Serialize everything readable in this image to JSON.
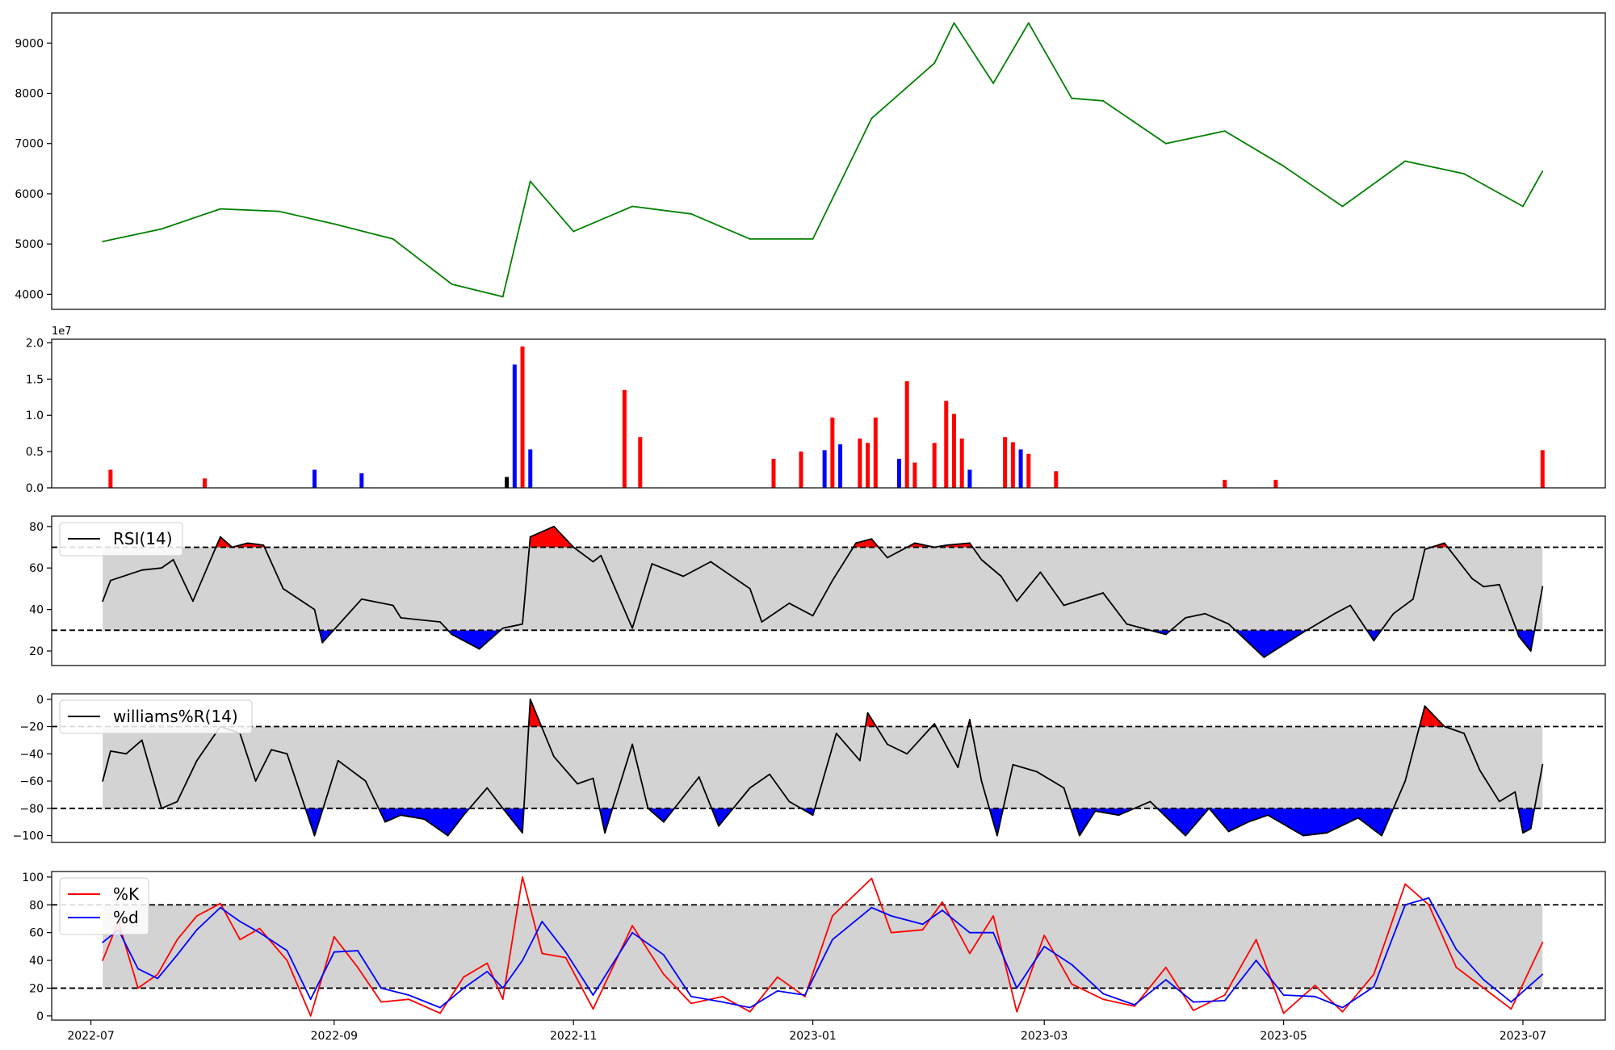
{
  "chart_data": [
    {
      "type": "line",
      "panel": "price",
      "color": "#008000",
      "ylim": [
        3700,
        9600
      ],
      "yticks": [
        "4000",
        "5000",
        "6000",
        "7000",
        "8000",
        "9000"
      ],
      "xlim": [
        "2022-06-21",
        "2023-07-22"
      ],
      "series": [
        {
          "x": [
            "2022-07-04",
            "2022-07-19",
            "2022-08-03",
            "2022-08-18",
            "2022-09-01",
            "2022-09-16",
            "2022-10-01",
            "2022-10-14",
            "2022-10-21",
            "2022-11-01",
            "2022-11-16",
            "2022-12-01",
            "2022-12-16",
            "2023-01-01",
            "2023-01-16",
            "2023-02-01",
            "2023-02-06",
            "2023-02-16",
            "2023-02-25",
            "2023-03-08",
            "2023-03-16",
            "2023-04-01",
            "2023-04-16",
            "2023-05-01",
            "2023-05-16",
            "2023-06-01",
            "2023-06-16",
            "2023-07-01",
            "2023-07-06"
          ],
          "values": [
            5050,
            5300,
            5700,
            5650,
            5400,
            5100,
            4200,
            3950,
            6250,
            5250,
            5750,
            5600,
            5100,
            5100,
            7500,
            8600,
            9400,
            8200,
            9400,
            7900,
            7850,
            7000,
            7250,
            6550,
            5750,
            6650,
            6400,
            5750,
            6450
          ]
        }
      ]
    },
    {
      "type": "bar",
      "panel": "volume",
      "scale_label": "1e7",
      "ylim": [
        0,
        2.05
      ],
      "yticks": [
        "0.0",
        "0.5",
        "1.0",
        "1.5",
        "2.0"
      ],
      "colors": {
        "up": "#ff0000",
        "down": "#0000ff",
        "flat": "#000000"
      },
      "series": [
        {
          "x": [
            "2022-07-06",
            "2022-07-30",
            "2022-08-27",
            "2022-09-08",
            "2022-10-15",
            "2022-10-17",
            "2022-10-19",
            "2022-10-21",
            "2022-11-14",
            "2022-11-18",
            "2022-12-22",
            "2022-12-29",
            "2023-01-04",
            "2023-01-06",
            "2023-01-08",
            "2023-01-13",
            "2023-01-15",
            "2023-01-17",
            "2023-01-23",
            "2023-01-25",
            "2023-01-27",
            "2023-02-01",
            "2023-02-04",
            "2023-02-06",
            "2023-02-08",
            "2023-02-10",
            "2023-02-19",
            "2023-02-21",
            "2023-02-23",
            "2023-02-25",
            "2023-03-04",
            "2023-04-16",
            "2023-04-29",
            "2023-07-06"
          ],
          "values": [
            0.25,
            0.13,
            0.25,
            0.2,
            0.15,
            1.7,
            1.95,
            0.53,
            1.35,
            0.7,
            0.4,
            0.5,
            0.52,
            0.97,
            0.6,
            0.68,
            0.62,
            0.97,
            0.4,
            1.47,
            0.35,
            0.62,
            1.2,
            1.02,
            0.68,
            0.25,
            0.7,
            0.63,
            0.53,
            0.47,
            0.23,
            0.11,
            0.11,
            0.52
          ],
          "direction": [
            "up",
            "up",
            "down",
            "down",
            "flat",
            "down",
            "up",
            "down",
            "up",
            "up",
            "up",
            "up",
            "down",
            "up",
            "down",
            "up",
            "up",
            "up",
            "down",
            "up",
            "up",
            "up",
            "up",
            "up",
            "up",
            "down",
            "up",
            "up",
            "down",
            "up",
            "up",
            "up",
            "up",
            "up"
          ]
        }
      ]
    },
    {
      "type": "line",
      "panel": "rsi",
      "ylim": [
        13,
        85
      ],
      "yticks": [
        "20",
        "40",
        "60",
        "80"
      ],
      "thresholds": [
        30,
        70
      ],
      "band_color": "#d3d3d3",
      "overbought_color": "#ff0000",
      "oversold_color": "#0000ff",
      "series": [
        {
          "name": "RSI(14)",
          "x": [
            "2022-07-04",
            "2022-07-06",
            "2022-07-14",
            "2022-07-19",
            "2022-07-22",
            "2022-07-27",
            "2022-08-03",
            "2022-08-06",
            "2022-08-10",
            "2022-08-14",
            "2022-08-19",
            "2022-08-27",
            "2022-08-29",
            "2022-09-08",
            "2022-09-16",
            "2022-09-18",
            "2022-09-28",
            "2022-10-01",
            "2022-10-08",
            "2022-10-14",
            "2022-10-19",
            "2022-10-21",
            "2022-10-27",
            "2022-11-01",
            "2022-11-06",
            "2022-11-08",
            "2022-11-16",
            "2022-11-21",
            "2022-11-29",
            "2022-12-06",
            "2022-12-16",
            "2022-12-19",
            "2022-12-26",
            "2023-01-01",
            "2023-01-06",
            "2023-01-12",
            "2023-01-16",
            "2023-01-20",
            "2023-01-27",
            "2023-02-01",
            "2023-02-04",
            "2023-02-10",
            "2023-02-13",
            "2023-02-18",
            "2023-02-22",
            "2023-02-28",
            "2023-03-06",
            "2023-03-16",
            "2023-03-22",
            "2023-04-01",
            "2023-04-06",
            "2023-04-11",
            "2023-04-17",
            "2023-04-26",
            "2023-05-06",
            "2023-05-14",
            "2023-05-18",
            "2023-05-24",
            "2023-05-29",
            "2023-06-03",
            "2023-06-06",
            "2023-06-11",
            "2023-06-18",
            "2023-06-21",
            "2023-06-25",
            "2023-06-30",
            "2023-07-03",
            "2023-07-06"
          ],
          "values": [
            44,
            54,
            59,
            60,
            64,
            44,
            75,
            70,
            72,
            71,
            50,
            40,
            24,
            45,
            42,
            36,
            34,
            28,
            21,
            31,
            33,
            75,
            80,
            70,
            63,
            66,
            31,
            62,
            56,
            63,
            50,
            34,
            43,
            37,
            54,
            72,
            74,
            65,
            72,
            70,
            71,
            72,
            64,
            56,
            44,
            58,
            42,
            48,
            33,
            28,
            36,
            38,
            33,
            17,
            29,
            38,
            42,
            25,
            38,
            45,
            69,
            72,
            55,
            51,
            52,
            27,
            20,
            51
          ]
        }
      ]
    },
    {
      "type": "line",
      "panel": "williams",
      "ylim": [
        -105,
        4
      ],
      "yticks": [
        "0",
        "−20",
        "−40",
        "−60",
        "−80",
        "−100"
      ],
      "thresholds": [
        -20,
        -80
      ],
      "band_color": "#d3d3d3",
      "overbought_color": "#ff0000",
      "oversold_color": "#0000ff",
      "series": [
        {
          "name": "williams%R(14)",
          "x": [
            "2022-07-04",
            "2022-07-06",
            "2022-07-10",
            "2022-07-14",
            "2022-07-19",
            "2022-07-23",
            "2022-07-28",
            "2022-08-03",
            "2022-08-08",
            "2022-08-12",
            "2022-08-16",
            "2022-08-20",
            "2022-08-27",
            "2022-09-02",
            "2022-09-09",
            "2022-09-14",
            "2022-09-18",
            "2022-09-24",
            "2022-09-30",
            "2022-10-04",
            "2022-10-10",
            "2022-10-14",
            "2022-10-19",
            "2022-10-21",
            "2022-10-27",
            "2022-11-02",
            "2022-11-06",
            "2022-11-09",
            "2022-11-16",
            "2022-11-20",
            "2022-11-24",
            "2022-12-03",
            "2022-12-08",
            "2022-12-16",
            "2022-12-21",
            "2022-12-26",
            "2023-01-01",
            "2023-01-07",
            "2023-01-13",
            "2023-01-15",
            "2023-01-20",
            "2023-01-25",
            "2023-02-01",
            "2023-02-07",
            "2023-02-10",
            "2023-02-13",
            "2023-02-17",
            "2023-02-21",
            "2023-02-27",
            "2023-03-06",
            "2023-03-10",
            "2023-03-14",
            "2023-03-20",
            "2023-03-28",
            "2023-04-06",
            "2023-04-12",
            "2023-04-17",
            "2023-04-22",
            "2023-04-27",
            "2023-05-06",
            "2023-05-12",
            "2023-05-20",
            "2023-05-26",
            "2023-06-01",
            "2023-06-06",
            "2023-06-11",
            "2023-06-16",
            "2023-06-20",
            "2023-06-25",
            "2023-06-29",
            "2023-07-01",
            "2023-07-03",
            "2023-07-06"
          ],
          "values": [
            -60,
            -38,
            -40,
            -30,
            -80,
            -75,
            -45,
            -20,
            -25,
            -60,
            -37,
            -40,
            -100,
            -45,
            -60,
            -90,
            -85,
            -88,
            -100,
            -85,
            -65,
            -80,
            -98,
            0,
            -42,
            -62,
            -58,
            -98,
            -33,
            -80,
            -90,
            -57,
            -93,
            -65,
            -55,
            -75,
            -85,
            -25,
            -45,
            -10,
            -33,
            -40,
            -18,
            -50,
            -15,
            -60,
            -100,
            -48,
            -53,
            -65,
            -100,
            -82,
            -85,
            -75,
            -100,
            -80,
            -97,
            -90,
            -85,
            -100,
            -98,
            -87,
            -100,
            -60,
            -5,
            -20,
            -25,
            -52,
            -75,
            -68,
            -98,
            -95,
            -48
          ]
        }
      ]
    },
    {
      "type": "line",
      "panel": "stochastic",
      "ylim": [
        -3,
        104
      ],
      "yticks": [
        "0",
        "20",
        "40",
        "60",
        "80",
        "100"
      ],
      "thresholds": [
        20,
        80
      ],
      "band_color": "#d3d3d3",
      "series": [
        {
          "name": "%K",
          "color": "#ff0000",
          "x": [
            "2022-07-04",
            "2022-07-08",
            "2022-07-13",
            "2022-07-18",
            "2022-07-23",
            "2022-07-28",
            "2022-08-03",
            "2022-08-08",
            "2022-08-13",
            "2022-08-20",
            "2022-08-26",
            "2022-09-01",
            "2022-09-07",
            "2022-09-13",
            "2022-09-20",
            "2022-09-28",
            "2022-10-04",
            "2022-10-10",
            "2022-10-14",
            "2022-10-19",
            "2022-10-24",
            "2022-10-30",
            "2022-11-06",
            "2022-11-16",
            "2022-11-24",
            "2022-12-01",
            "2022-12-09",
            "2022-12-16",
            "2022-12-23",
            "2022-12-30",
            "2023-01-06",
            "2023-01-16",
            "2023-01-21",
            "2023-01-29",
            "2023-02-03",
            "2023-02-10",
            "2023-02-16",
            "2023-02-22",
            "2023-03-01",
            "2023-03-08",
            "2023-03-16",
            "2023-03-24",
            "2023-04-01",
            "2023-04-08",
            "2023-04-16",
            "2023-04-24",
            "2023-05-01",
            "2023-05-09",
            "2023-05-16",
            "2023-05-24",
            "2023-06-01",
            "2023-06-07",
            "2023-06-14",
            "2023-06-21",
            "2023-06-28",
            "2023-07-06"
          ],
          "values": [
            40,
            68,
            20,
            30,
            55,
            72,
            81,
            55,
            63,
            40,
            0,
            57,
            35,
            10,
            12,
            2,
            28,
            38,
            12,
            100,
            45,
            42,
            5,
            65,
            30,
            9,
            14,
            3,
            28,
            14,
            72,
            99,
            60,
            62,
            82,
            45,
            72,
            3,
            58,
            23,
            12,
            7,
            35,
            4,
            15,
            55,
            2,
            22,
            3,
            30,
            95,
            80,
            35,
            20,
            5,
            53
          ]
        },
        {
          "name": "%d",
          "color": "#0000ff",
          "x": [
            "2022-07-04",
            "2022-07-08",
            "2022-07-13",
            "2022-07-18",
            "2022-07-23",
            "2022-07-28",
            "2022-08-03",
            "2022-08-08",
            "2022-08-13",
            "2022-08-20",
            "2022-08-26",
            "2022-09-01",
            "2022-09-07",
            "2022-09-13",
            "2022-09-20",
            "2022-09-28",
            "2022-10-04",
            "2022-10-10",
            "2022-10-14",
            "2022-10-19",
            "2022-10-24",
            "2022-10-30",
            "2022-11-06",
            "2022-11-16",
            "2022-11-24",
            "2022-12-01",
            "2022-12-09",
            "2022-12-16",
            "2022-12-23",
            "2022-12-30",
            "2023-01-06",
            "2023-01-16",
            "2023-01-21",
            "2023-01-29",
            "2023-02-03",
            "2023-02-10",
            "2023-02-16",
            "2023-02-22",
            "2023-03-01",
            "2023-03-08",
            "2023-03-16",
            "2023-03-24",
            "2023-04-01",
            "2023-04-08",
            "2023-04-16",
            "2023-04-24",
            "2023-05-01",
            "2023-05-09",
            "2023-05-16",
            "2023-05-24",
            "2023-06-01",
            "2023-06-07",
            "2023-06-14",
            "2023-06-21",
            "2023-06-28",
            "2023-07-06"
          ],
          "values": [
            53,
            62,
            34,
            27,
            44,
            62,
            78,
            68,
            60,
            47,
            12,
            46,
            47,
            20,
            15,
            6,
            20,
            32,
            20,
            40,
            68,
            46,
            15,
            60,
            44,
            14,
            10,
            6,
            18,
            15,
            55,
            78,
            72,
            66,
            76,
            60,
            60,
            20,
            50,
            37,
            16,
            8,
            26,
            10,
            11,
            40,
            15,
            14,
            6,
            21,
            80,
            85,
            48,
            26,
            10,
            30
          ]
        }
      ]
    }
  ],
  "x_axis": {
    "ticks": [
      {
        "date": "2022-07-01",
        "label": "2022-07"
      },
      {
        "date": "2022-09-01",
        "label": "2022-09"
      },
      {
        "date": "2022-11-01",
        "label": "2022-11"
      },
      {
        "date": "2023-01-01",
        "label": "2023-01"
      },
      {
        "date": "2023-03-01",
        "label": "2023-03"
      },
      {
        "date": "2023-05-01",
        "label": "2023-05"
      },
      {
        "date": "2023-07-01",
        "label": "2023-07"
      }
    ]
  }
}
